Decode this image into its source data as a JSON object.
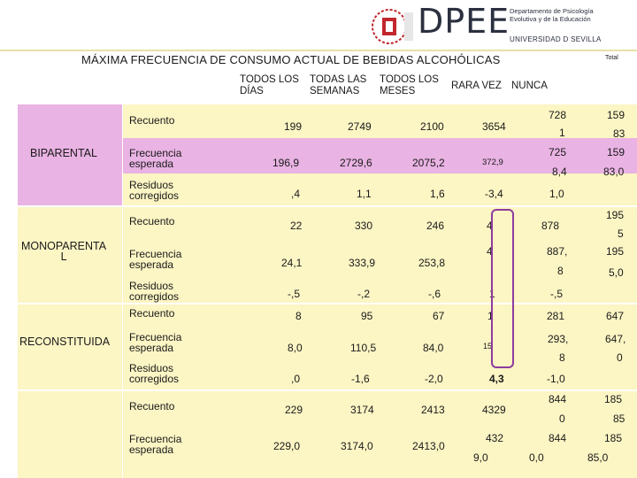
{
  "header": {
    "brand": "DPEE",
    "department_line1": "Departamento de Psicología",
    "department_line2": "Evolutiva y de la Educación",
    "university": "UNIVERSIDAD D SEVILLA"
  },
  "title": "MÁXIMA FRECUENCIA DE CONSUMO ACTUAL DE BEBIDAS ALCOHÓLICAS",
  "total_label": "Total",
  "columns": {
    "c1": "TODOS LOS\nDÍAS",
    "c2": "TODAS LAS\nSEMANAS",
    "c3": "TODOS LOS\nMESES",
    "c4": "RARA VEZ",
    "c5": "NUNCA"
  },
  "groups": {
    "biparental": "BIPARENTAL",
    "monoparental": "MONOPARENTA\nL",
    "reconstituida": "RECONSTITUIDA"
  },
  "row_labels": {
    "recuento": "Recuento",
    "frecuencia": "Frecuencia\nesperada",
    "residuos": "Residuos\ncorregidos"
  },
  "values": {
    "bi_rec": [
      "199",
      "2749",
      "2100",
      "3654",
      "728",
      "1",
      "159",
      "83"
    ],
    "bi_frec": [
      "196,9",
      "2729,6",
      "2075,2",
      "372,9",
      "725",
      "8,4",
      "159",
      "83,0"
    ],
    "bi_res": [
      ",4",
      "1,1",
      "1,6",
      "-3,4",
      "1,0"
    ],
    "mono_rec": [
      "22",
      "330",
      "246",
      "4",
      "878",
      "195",
      "5"
    ],
    "mono_frec": [
      "24,1",
      "333,9",
      "253,8",
      "4",
      "887,",
      "8",
      "195",
      "5,0"
    ],
    "mono_res": [
      "-,5",
      "-,2",
      "-,6",
      "1",
      "-,5"
    ],
    "rec_rec": [
      "8",
      "95",
      "67",
      "1",
      "281",
      "647"
    ],
    "rec_frec": [
      "8,0",
      "110,5",
      "84,0",
      "15",
      "293,",
      "8",
      "647,",
      "0"
    ],
    "rec_res": [
      ",0",
      "-1,6",
      "-2,0",
      "4,3",
      "-1,0"
    ],
    "tot_rec": [
      "229",
      "3174",
      "2413",
      "4329",
      "844",
      "0",
      "185",
      "85"
    ],
    "tot_frec": [
      "229,0",
      "3174,0",
      "2413,0",
      "432",
      "9,0",
      "844",
      "0,0",
      "185",
      "85,0"
    ]
  },
  "colors": {
    "pink": "#e9b3e3",
    "yellow": "#fcf5c4",
    "highlight": "#8e3c9e",
    "header_separator": "#e8e0a8"
  }
}
